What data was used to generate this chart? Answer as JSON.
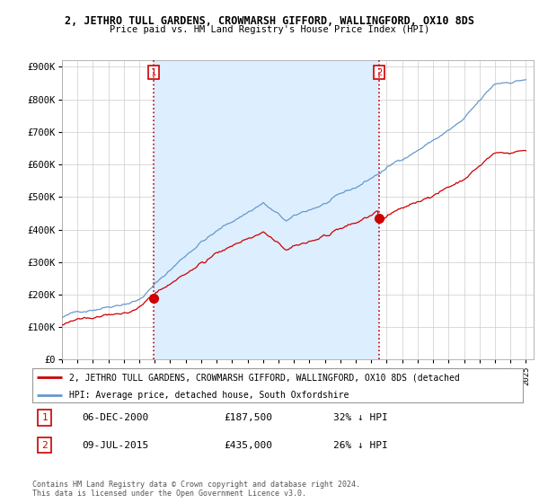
{
  "title": "2, JETHRO TULL GARDENS, CROWMARSH GIFFORD, WALLINGFORD, OX10 8DS",
  "subtitle": "Price paid vs. HM Land Registry's House Price Index (HPI)",
  "ylim": [
    0,
    920000
  ],
  "yticks": [
    0,
    100000,
    200000,
    300000,
    400000,
    500000,
    600000,
    700000,
    800000,
    900000
  ],
  "ytick_labels": [
    "£0",
    "£100K",
    "£200K",
    "£300K",
    "£400K",
    "£500K",
    "£600K",
    "£700K",
    "£800K",
    "£900K"
  ],
  "xlim_start": 1995.0,
  "xlim_end": 2025.5,
  "sale1_year": 2000.92,
  "sale1_price": 187500,
  "sale1_label": "1",
  "sale1_date": "06-DEC-2000",
  "sale1_amount": "£187,500",
  "sale1_hpi": "32% ↓ HPI",
  "sale2_year": 2015.52,
  "sale2_price": 435000,
  "sale2_label": "2",
  "sale2_date": "09-JUL-2015",
  "sale2_amount": "£435,000",
  "sale2_hpi": "26% ↓ HPI",
  "red_color": "#cc0000",
  "blue_color": "#6699cc",
  "blue_fill_color": "#ddeeff",
  "background_color": "#ffffff",
  "grid_color": "#cccccc",
  "legend_label_red": "2, JETHRO TULL GARDENS, CROWMARSH GIFFORD, WALLINGFORD, OX10 8DS (detached",
  "legend_label_blue": "HPI: Average price, detached house, South Oxfordshire",
  "footer1": "Contains HM Land Registry data © Crown copyright and database right 2024.",
  "footer2": "This data is licensed under the Open Government Licence v3.0."
}
